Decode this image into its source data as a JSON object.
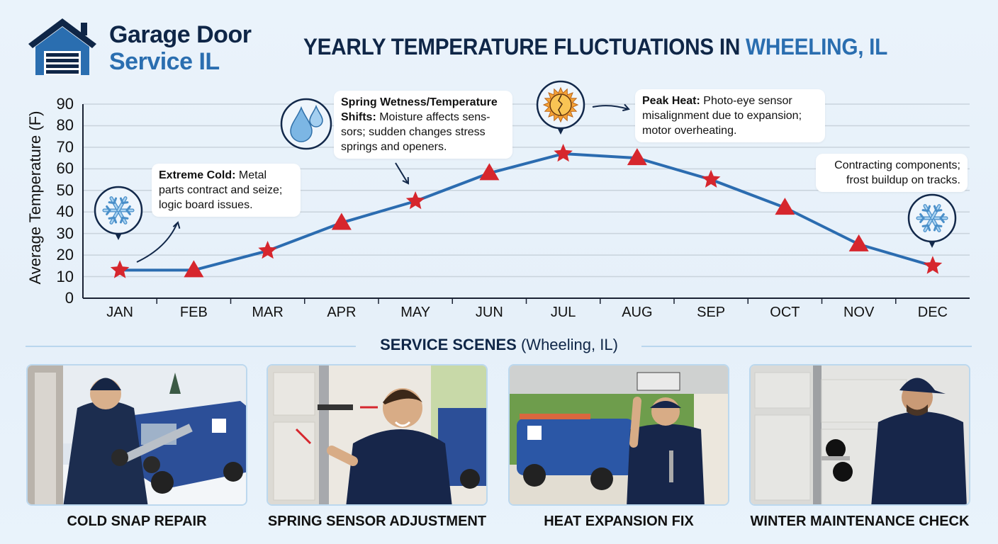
{
  "brand": {
    "line1": "Garage Door",
    "line2": "Service IL",
    "icon": "garage-house-icon",
    "colors": {
      "dark": "#0f2647",
      "blue": "#2a6eb0"
    }
  },
  "header": {
    "title_main": "YEARLY TEMPERATURE FLUCTUATIONS IN ",
    "title_highlight": "WHEELING, IL"
  },
  "chart_data": {
    "type": "line",
    "title": "Yearly Temperature Fluctuations in Wheeling, IL",
    "xlabel": "",
    "ylabel": "Average Temperature (F)",
    "ylim": [
      0,
      90
    ],
    "yticks": [
      0,
      10,
      20,
      30,
      40,
      50,
      60,
      70,
      80,
      90
    ],
    "grid": true,
    "categories": [
      "JAN",
      "FEB",
      "MAR",
      "APR",
      "MAY",
      "JUN",
      "JUL",
      "AUG",
      "SEP",
      "OCT",
      "NOV",
      "DEC"
    ],
    "series": [
      {
        "name": "Average Temperature (F)",
        "values": [
          13,
          13,
          22,
          35,
          45,
          58,
          67,
          65,
          55,
          42,
          25,
          15
        ],
        "markers": [
          "star",
          "triangle",
          "star",
          "triangle",
          "star",
          "triangle",
          "star",
          "triangle",
          "star",
          "triangle",
          "triangle",
          "star"
        ],
        "line_color": "#2b6cb0",
        "marker_color": "#d6262d"
      }
    ],
    "annotations": [
      {
        "month": "JAN",
        "icon": "snowflake-icon",
        "bold": "Extreme Cold:",
        "text": " Metal parts contract and seize; logic board issues."
      },
      {
        "month": "MAY",
        "icon": "water-drops-icon",
        "bold": "Spring Wetness/Temperature Shifts:",
        "text": " Moisture affects sensors; sudden changes stress springs and openers."
      },
      {
        "month": "JUL",
        "icon": "cracked-sun-icon",
        "bold": "Peak Heat:",
        "text": " Photo-eye sensor misalignment due to expansion; motor overheating."
      },
      {
        "month": "DEC",
        "icon": "snowflake-icon",
        "bold": "",
        "text": "Contracting components; frost buildup on tracks."
      }
    ]
  },
  "callouts": {
    "cold": {
      "bold": "Extreme Cold:",
      "l1": " Metal",
      "l2": "parts contract and seize;",
      "l3": "logic board issues."
    },
    "spring": {
      "bold1": "Spring Wetness/Temperature",
      "bold2": "Shifts:",
      "l2": " Moisture affects sens-",
      "l3": "sors; sudden changes stress",
      "l4": "springs and openers."
    },
    "heat": {
      "bold": "Peak Heat:",
      "l1": " Photo-eye sensor",
      "l2": "misalignment due to expansion;",
      "l3": "motor overheating."
    },
    "winter": {
      "l1": "Contracting components;",
      "l2": "frost buildup on tracks."
    }
  },
  "section": {
    "title_bold": "SERVICE SCENES",
    "title_rest": " (Wheeling, IL)"
  },
  "scenes": [
    {
      "caption": "COLD SNAP REPAIR",
      "image": "technician in winter jacket inspecting part beside snowy service van"
    },
    {
      "caption": "SPRING SENSOR ADJUSTMENT",
      "image": "smiling technician adjusting garage door spring track"
    },
    {
      "caption": "HEAT EXPANSION FIX",
      "image": "technician with wrench under garage door opener, van outside"
    },
    {
      "caption": "WINTER MAINTENANCE CHECK",
      "image": "technician in cap lubricating garage door track roller"
    }
  ]
}
